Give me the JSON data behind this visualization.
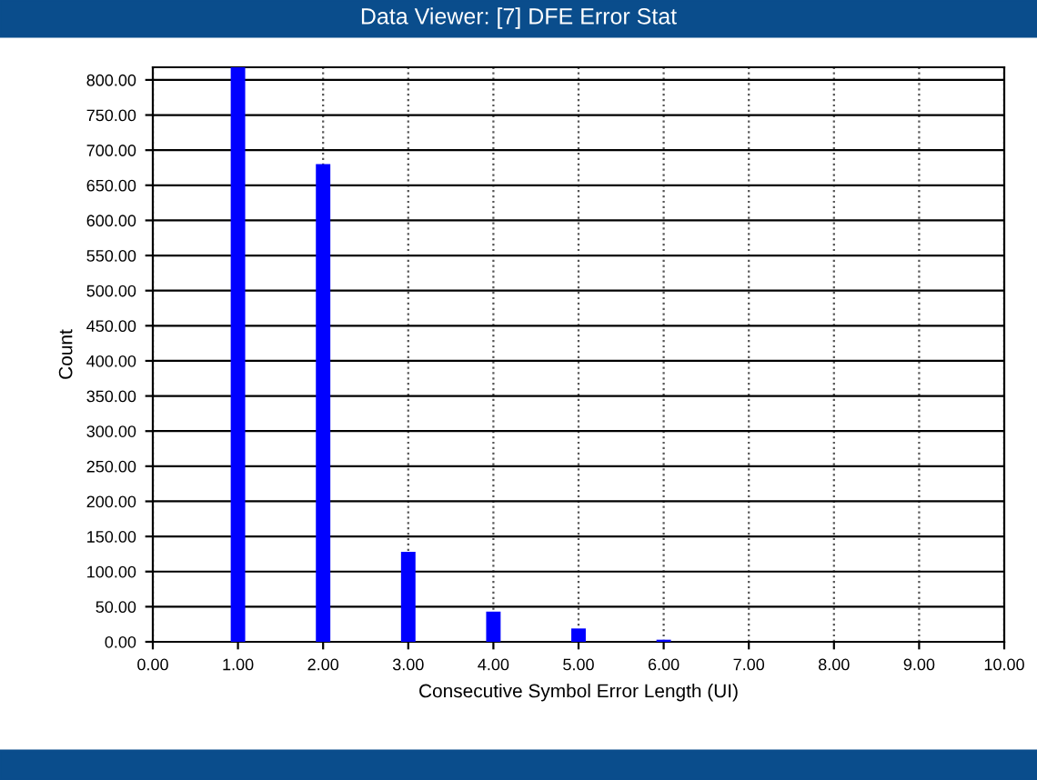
{
  "chart_data": {
    "type": "bar",
    "title": "Data Viewer: [7] DFE Error Stat",
    "xlabel": "Consecutive Symbol Error Length (UI)",
    "ylabel": "Count",
    "x": [
      1,
      2,
      3,
      4,
      5,
      6
    ],
    "values": [
      818,
      680,
      128,
      43,
      19,
      3
    ],
    "color": "#0000ff",
    "xlim": [
      0,
      10
    ],
    "ylim": [
      0,
      818
    ],
    "xticks": [
      {
        "value": 0,
        "label": "0.00"
      },
      {
        "value": 1,
        "label": "1.00"
      },
      {
        "value": 2,
        "label": "2.00"
      },
      {
        "value": 3,
        "label": "3.00"
      },
      {
        "value": 4,
        "label": "4.00"
      },
      {
        "value": 5,
        "label": "5.00"
      },
      {
        "value": 6,
        "label": "6.00"
      },
      {
        "value": 7,
        "label": "7.00"
      },
      {
        "value": 8,
        "label": "8.00"
      },
      {
        "value": 9,
        "label": "9.00"
      },
      {
        "value": 10,
        "label": "10.00"
      }
    ],
    "yticks": [
      {
        "value": 0,
        "label": "0.00"
      },
      {
        "value": 50,
        "label": "50.00"
      },
      {
        "value": 100,
        "label": "100.00"
      },
      {
        "value": 150,
        "label": "150.00"
      },
      {
        "value": 200,
        "label": "200.00"
      },
      {
        "value": 250,
        "label": "250.00"
      },
      {
        "value": 300,
        "label": "300.00"
      },
      {
        "value": 350,
        "label": "350.00"
      },
      {
        "value": 400,
        "label": "400.00"
      },
      {
        "value": 450,
        "label": "450.00"
      },
      {
        "value": 500,
        "label": "500.00"
      },
      {
        "value": 550,
        "label": "550.00"
      },
      {
        "value": 600,
        "label": "600.00"
      },
      {
        "value": 650,
        "label": "650.00"
      },
      {
        "value": 700,
        "label": "700.00"
      },
      {
        "value": 750,
        "label": "750.00"
      },
      {
        "value": 800,
        "label": "800.00"
      }
    ],
    "grid": true
  }
}
